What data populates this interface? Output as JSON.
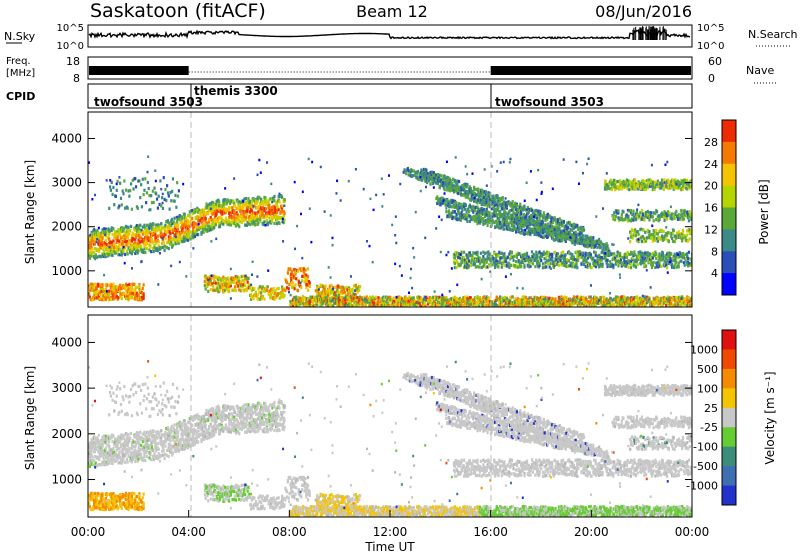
{
  "header": {
    "station": "Saskatoon (fitACF)",
    "beam": "Beam 12",
    "date": "08/Jun/2016"
  },
  "top_panels": {
    "nsky_label": "N.Sky",
    "nsky_ticks": [
      "10^5",
      "10^0"
    ],
    "nsearch_label": "N.Search",
    "nsearch_ticks": [
      "10^5",
      "10^0"
    ],
    "freq_label_1": "Freq.",
    "freq_label_2": "[MHz]",
    "freq_ticks": [
      "18",
      "8"
    ],
    "nave_label": "Nave",
    "nave_ticks": [
      "60",
      "0"
    ],
    "cpid_label": "CPID",
    "cpid_segments": [
      {
        "label": "twofsound 3503",
        "start_hour": 0
      },
      {
        "label": "themis 3300",
        "start_hour": 4
      },
      {
        "label": "twofsound 3503",
        "start_hour": 16
      }
    ]
  },
  "chart_data": [
    {
      "type": "heatmap",
      "title": "",
      "ylabel": "Slant Range [km]",
      "xlabel": "",
      "x_range_hours": [
        0,
        24
      ],
      "ylim": [
        180,
        4600
      ],
      "yticks": [
        "4000",
        "3000",
        "2000",
        "1000"
      ],
      "colorbar": {
        "label": "Power [dB]",
        "tick_labels": [
          "28",
          "24",
          "20",
          "16",
          "12",
          "8",
          "4"
        ],
        "colors": [
          "#0000ff",
          "#2a4fb8",
          "#3c8a88",
          "#5aa838",
          "#b6d400",
          "#f5c400",
          "#f47a00",
          "#ee2a00"
        ],
        "range": [
          0,
          30
        ]
      },
      "features": [
        {
          "region": "0-8 UT band rising from 1600 km to 2400 km",
          "level": "8-28 dB"
        },
        {
          "region": "12-20 UT arcs descending from 3300 km",
          "level": "4-12 dB"
        },
        {
          "region": "20-24 UT bands at 3000 km and 1800-2300 km",
          "level": "4-20 dB"
        }
      ]
    },
    {
      "type": "heatmap",
      "title": "",
      "ylabel": "Slant Range [km]",
      "xlabel": "Time UT",
      "x_range_hours": [
        0,
        24
      ],
      "xticks": [
        "00:00",
        "04:00",
        "08:00",
        "12:00",
        "16:00",
        "20:00",
        "00:00"
      ],
      "ylim": [
        180,
        4600
      ],
      "yticks": [
        "4000",
        "3000",
        "2000",
        "1000"
      ],
      "colorbar": {
        "label": "Velocity [m s⁻¹]",
        "tick_labels": [
          "1000",
          "500",
          "100",
          "25",
          "-25",
          "-100",
          "-500",
          "-1000"
        ],
        "colors": [
          "#2233cc",
          "#3f6fb3",
          "#3c8c7a",
          "#66cc33",
          "#c8c8c8",
          "#f5c400",
          "#f58c00",
          "#f04a00",
          "#e01010"
        ],
        "range": [
          -1200,
          1200
        ]
      },
      "features": [
        {
          "region": "0-8 UT band 1600-2400 km",
          "level": "-25 to 25 m/s (ground/low)"
        },
        {
          "region": "0-2 UT near 500 km",
          "level": "-100 to -500 m/s"
        },
        {
          "region": "16-24 UT near-range",
          "level": "25 to 100 m/s"
        }
      ]
    }
  ]
}
